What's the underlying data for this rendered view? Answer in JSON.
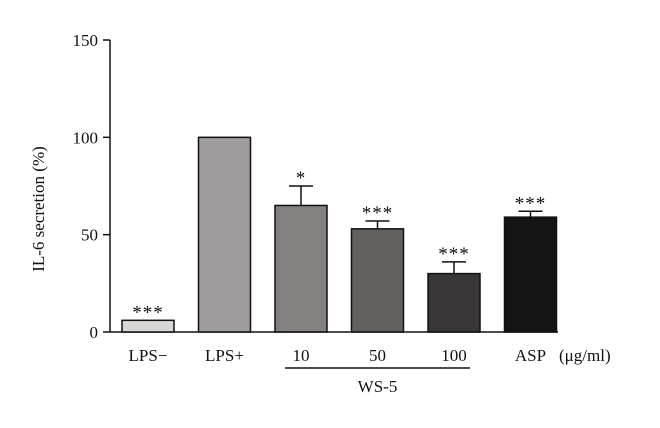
{
  "chart_data": {
    "type": "bar",
    "title": "",
    "xlabel": "",
    "ylabel": "IL-6 secretion (%)",
    "ylim": [
      0,
      150
    ],
    "yticks": [
      "0",
      "50",
      "100",
      "150"
    ],
    "grid": false,
    "categories": [
      "LPS−",
      "LPS+",
      "10",
      "50",
      "100",
      "ASP"
    ],
    "values": [
      6,
      100,
      65,
      53,
      30,
      59
    ],
    "errors": [
      0,
      0,
      10,
      4,
      6,
      3
    ],
    "significance": [
      "***",
      "",
      "*",
      "***",
      "***",
      "***"
    ],
    "bar_colors": [
      "#d9d6d6",
      "#a09b9c",
      "#858080",
      "#636060",
      "#383636",
      "#141414"
    ],
    "unit_label": "(μg/ml)",
    "group_label": {
      "text": "WS-5",
      "categories": [
        "10",
        "50",
        "100"
      ]
    }
  }
}
